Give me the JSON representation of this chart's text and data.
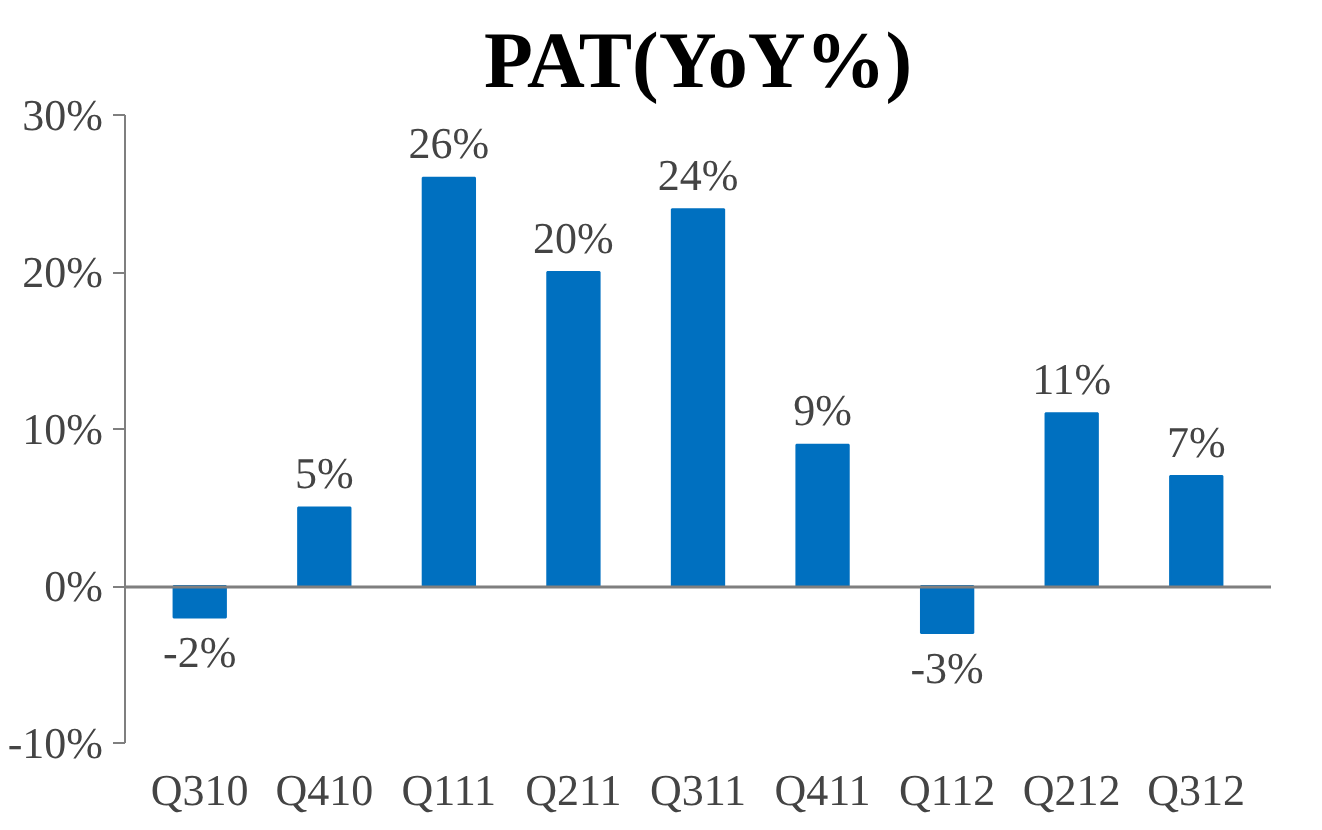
{
  "chart_data": {
    "type": "bar",
    "title": "PAT(YoY%)",
    "categories": [
      "Q310",
      "Q410",
      "Q111",
      "Q211",
      "Q311",
      "Q411",
      "Q112",
      "Q212",
      "Q312"
    ],
    "values": [
      -2,
      5,
      26,
      20,
      24,
      9,
      -3,
      11,
      7
    ],
    "value_labels": [
      "-2%",
      "5%",
      "26%",
      "20%",
      "24%",
      "9%",
      "-3%",
      "11%",
      "7%"
    ],
    "color": "#0070c0",
    "ylim": [
      -10,
      30
    ],
    "yticks": [
      {
        "value": -10,
        "label": "-10%"
      },
      {
        "value": 0,
        "label": "0%"
      },
      {
        "value": 10,
        "label": "10%"
      },
      {
        "value": 20,
        "label": "20%"
      },
      {
        "value": 30,
        "label": "30%"
      }
    ]
  }
}
